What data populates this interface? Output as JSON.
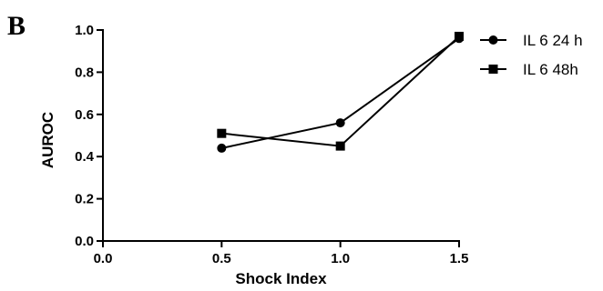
{
  "panel_label": "B",
  "colors": {
    "line": "#000000",
    "background": "#ffffff"
  },
  "chart_data": {
    "type": "line",
    "xlabel": "Shock Index",
    "ylabel": "AUROC",
    "xlim": [
      0.0,
      1.5
    ],
    "ylim": [
      0.0,
      1.0
    ],
    "xticks": [
      "0.0",
      "0.5",
      "1.0",
      "1.5"
    ],
    "yticks": [
      "0.0",
      "0.2",
      "0.4",
      "0.6",
      "0.8",
      "1.0"
    ],
    "xtick_values": [
      0.0,
      0.5,
      1.0,
      1.5
    ],
    "ytick_values": [
      0.0,
      0.2,
      0.4,
      0.6,
      0.8,
      1.0
    ],
    "grid": false,
    "legend_position": "top-right",
    "series": [
      {
        "name": "IL 6 24 h",
        "marker": "circle",
        "x": [
          0.5,
          1.0,
          1.5
        ],
        "y": [
          0.44,
          0.56,
          0.96
        ]
      },
      {
        "name": "IL 6 48h",
        "marker": "square",
        "x": [
          0.5,
          1.0,
          1.5
        ],
        "y": [
          0.51,
          0.45,
          0.97
        ]
      }
    ]
  }
}
